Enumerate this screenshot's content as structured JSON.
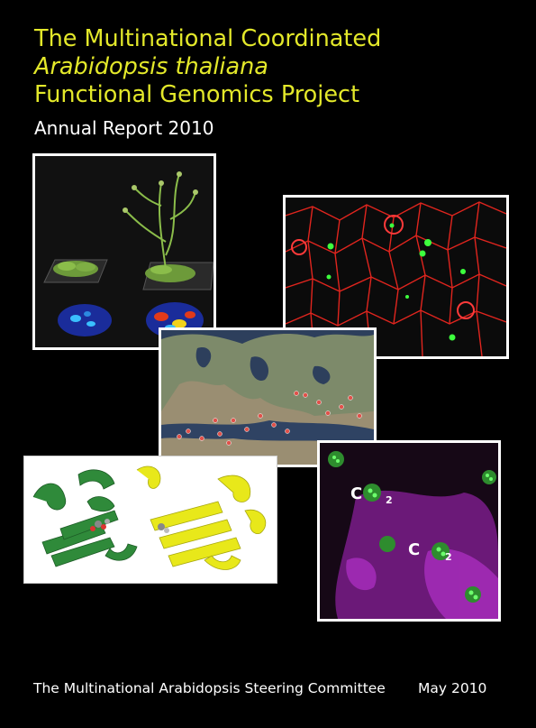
{
  "title": {
    "line1": "The Multinational Coordinated",
    "line2": "Arabidopsis thaliana",
    "line3": "Functional Genomics Project"
  },
  "subtitle": "Annual Report 2010",
  "images": {
    "plants": {
      "icon": "plant-growth-photo"
    },
    "cells": {
      "icon": "fluorescent-cell-micrograph"
    },
    "map": {
      "icon": "europe-satellite-map"
    },
    "protein": {
      "icon": "protein-ribbon-structure"
    },
    "stomata": {
      "icon": "stomata-micrograph",
      "label_a": "C",
      "label_b": "2",
      "label_c": "C",
      "label_d": "2"
    }
  },
  "footer": {
    "committee": "The Multinational Arabidopsis Steering Committee",
    "date": "May 2010"
  },
  "colors": {
    "title": "#e3e82a",
    "background": "#000000",
    "frame": "#ffffff"
  }
}
